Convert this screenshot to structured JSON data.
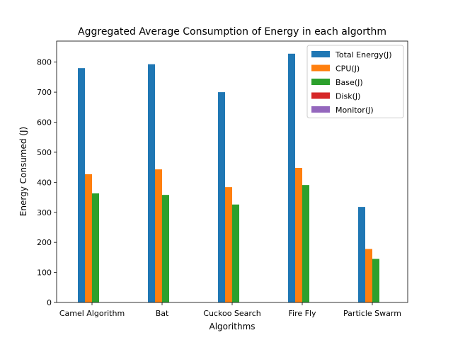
{
  "chart_data": {
    "type": "bar",
    "title": "Aggregated Average Consumption of Energy in each algorthm",
    "xlabel": "Algorithms",
    "ylabel": "Energy Consumed (J)",
    "categories": [
      "Camel Algorithm",
      "Bat",
      "Cuckoo Search",
      "Fire Fly",
      "Particle Swarm"
    ],
    "ylim": [
      0,
      870
    ],
    "yticks": [
      0,
      100,
      200,
      300,
      400,
      500,
      600,
      700,
      800
    ],
    "legend_position": "top-right",
    "grid": false,
    "series": [
      {
        "name": "Total Energy(J)",
        "color": "#1f77b4",
        "values": [
          780,
          793,
          700,
          828,
          318
        ]
      },
      {
        "name": "CPU(J)",
        "color": "#ff7f0e",
        "values": [
          427,
          443,
          384,
          448,
          178
        ]
      },
      {
        "name": "Base(J)",
        "color": "#2ca02c",
        "values": [
          363,
          358,
          326,
          391,
          145
        ]
      },
      {
        "name": "Disk(J)",
        "color": "#d62728",
        "values": [
          0,
          0,
          0,
          0,
          0
        ]
      },
      {
        "name": "Monitor(J)",
        "color": "#9467bd",
        "values": [
          0,
          0,
          0,
          0,
          0
        ]
      }
    ]
  }
}
